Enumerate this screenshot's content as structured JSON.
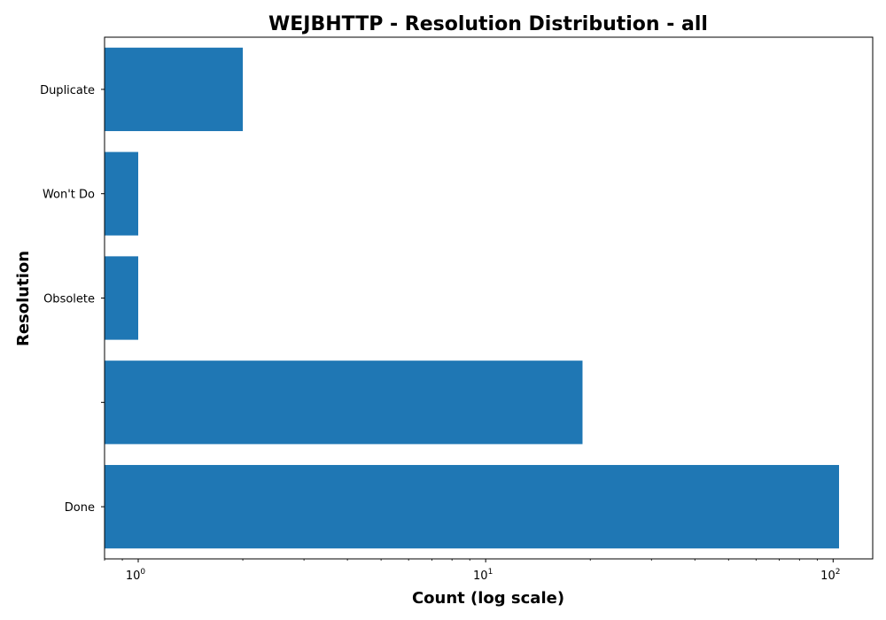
{
  "chart_data": {
    "type": "bar",
    "orientation": "horizontal",
    "title": "WEJBHTTP - Resolution Distribution - all",
    "xlabel": "Count (log scale)",
    "ylabel": "Resolution",
    "x_scale": "log",
    "xlim": [
      0.8,
      130
    ],
    "x_major_ticks": [
      1,
      10,
      100
    ],
    "x_tick_base": "10",
    "x_tick_exponents": [
      "0",
      "1",
      "2"
    ],
    "categories": [
      "Done",
      "",
      "Obsolete",
      "Won't Do",
      "Duplicate"
    ],
    "values": [
      104,
      19,
      1,
      1,
      2
    ],
    "bar_color": "#1f77b4",
    "grid": false,
    "legend": "none"
  }
}
